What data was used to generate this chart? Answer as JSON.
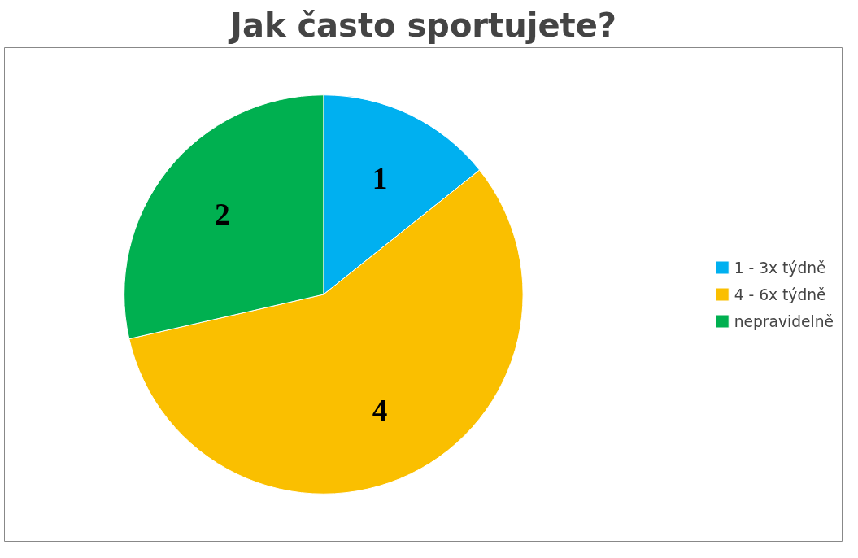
{
  "chart_data": {
    "type": "pie",
    "title": "Jak často sportujete?",
    "categories": [
      "1 - 3x týdně",
      "4 - 6x týdně",
      "nepravidelně"
    ],
    "values": [
      1,
      4,
      2
    ],
    "colors": [
      "#00b0f0",
      "#fabf00",
      "#00b050"
    ],
    "data_labels": true,
    "legend": "right"
  }
}
